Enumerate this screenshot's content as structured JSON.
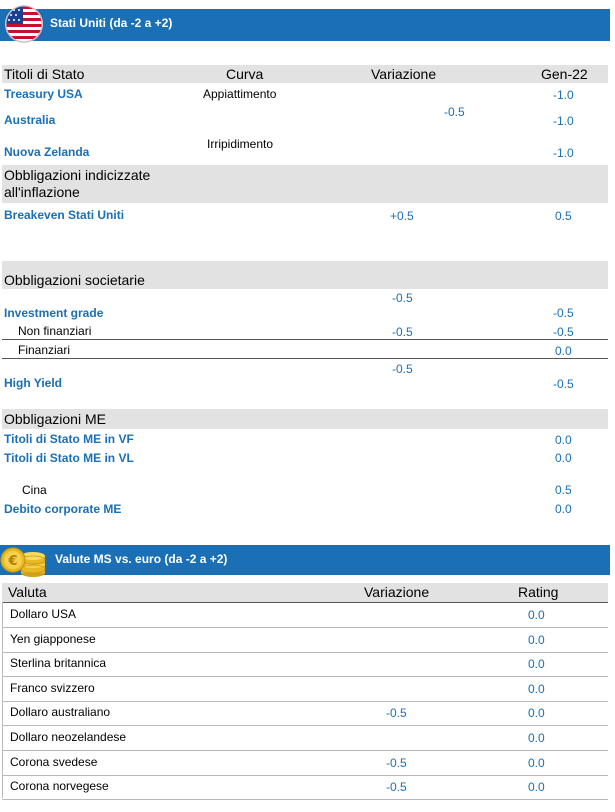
{
  "section1": {
    "title": "Stati Uniti (da -2 a +2)",
    "headers": {
      "c1": "Titoli di Stato",
      "c2": "Curva",
      "c3": "Variazione",
      "c4": "Gen-22"
    },
    "rows": {
      "treasury": {
        "label": "Treasury  USA",
        "curva": "Appiattimento",
        "value": "-1.0"
      },
      "australia": {
        "label": "Australia",
        "value": "-1.0"
      },
      "shared_var": "-0.5",
      "nz": {
        "label": "Nuova Zelanda",
        "curva": "Irripidimento",
        "value": "-1.0"
      }
    },
    "inflation": {
      "header": "Obbligazioni indicizzate all'inflazione",
      "breakeven": {
        "label": "Breakeven  Stati Uniti",
        "var": "+0.5",
        "value": "0.5"
      }
    },
    "corporate": {
      "header": "Obbligazioni societarie",
      "ig": {
        "label": "Investment grade",
        "var": "-0.5",
        "value": "-0.5"
      },
      "nonfin": {
        "label": "Non finanziari",
        "var": "-0.5",
        "value": "-0.5"
      },
      "fin": {
        "label": "Finanziari",
        "value": "0.0"
      },
      "hy": {
        "label": "High Yield",
        "var": "-0.5",
        "value": "-0.5"
      }
    },
    "em": {
      "header": "Obbligazioni ME",
      "vf": {
        "label": "Titoli di Stato ME in VF",
        "value": "0.0"
      },
      "vl": {
        "label": "Titoli di Stato ME in VL",
        "value": "0.0"
      },
      "cina": {
        "label": "Cina",
        "value": "0.5"
      },
      "corp": {
        "label": "Debito corporate ME",
        "value": "0.0"
      }
    }
  },
  "section2": {
    "title": "Valute MS vs. euro (da -2 a +2)",
    "headers": {
      "c1": "Valuta",
      "c2": "Variazione",
      "c3": "Rating"
    },
    "rows": [
      {
        "name": "Dollaro USA",
        "var": "",
        "rating": "0.0"
      },
      {
        "name": "Yen giapponese",
        "var": "",
        "rating": "0.0"
      },
      {
        "name": "Sterlina britannica",
        "var": "",
        "rating": "0.0"
      },
      {
        "name": "Franco svizzero",
        "var": "",
        "rating": "0.0"
      },
      {
        "name": "Dollaro australiano",
        "var": "-0.5",
        "rating": "0.0"
      },
      {
        "name": "Dollaro neozelandese",
        "var": "",
        "rating": "0.0"
      },
      {
        "name": "Corona svedese",
        "var": "-0.5",
        "rating": "0.0"
      },
      {
        "name": "Corona norvegese",
        "var": "-0.5",
        "rating": "0.0"
      }
    ]
  },
  "colors": {
    "accent": "#1a6fb5",
    "header_bg": "#e2e2e2"
  },
  "icons": {
    "flag": "us-flag-icon",
    "coins": "euro-coins-icon"
  }
}
